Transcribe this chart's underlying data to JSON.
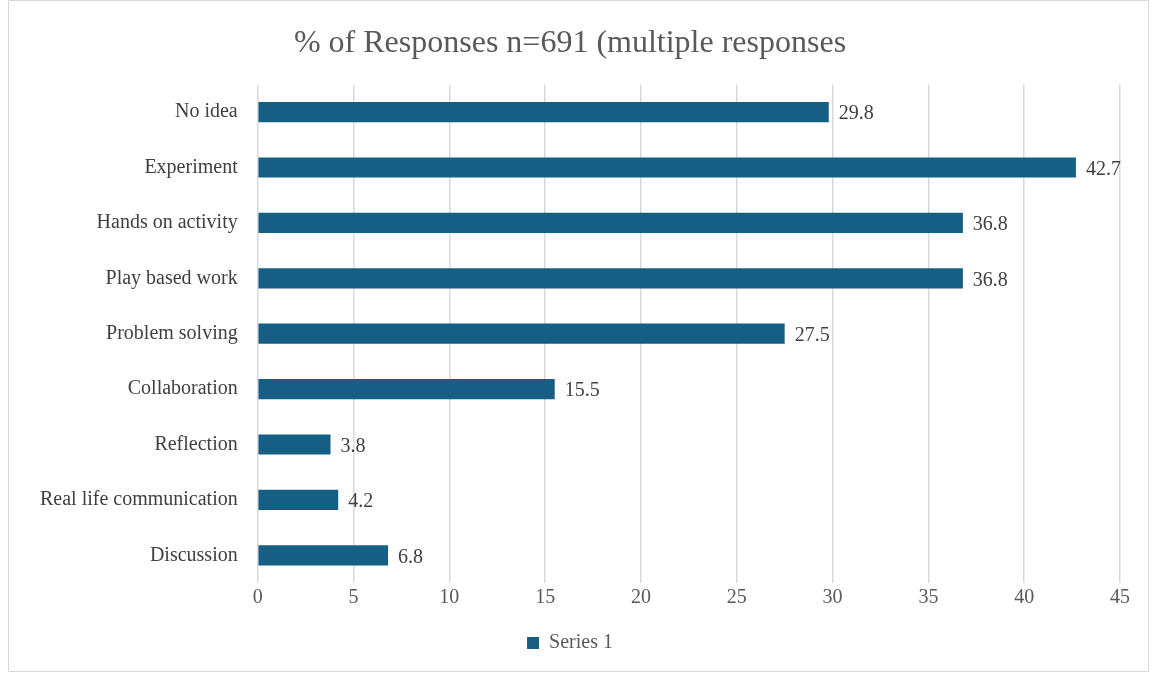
{
  "chart_data": {
    "type": "bar",
    "orientation": "horizontal",
    "title": "% of Responses n=691 (multiple responses",
    "categories": [
      "No idea",
      "Experiment",
      "Hands on activity",
      "Play based work",
      "Problem solving",
      "Collaboration",
      "Reflection",
      "Real life communication",
      "Discussion"
    ],
    "series": [
      {
        "name": "Series 1",
        "color": "#165e83",
        "values": [
          29.8,
          42.7,
          36.8,
          36.8,
          27.5,
          15.5,
          3.8,
          4.2,
          6.8
        ]
      }
    ],
    "xlim": [
      0,
      45
    ],
    "xticks": [
      0,
      5,
      10,
      15,
      20,
      25,
      30,
      35,
      40,
      45
    ],
    "grid": "x",
    "legend": "bottom",
    "data_labels": true
  }
}
